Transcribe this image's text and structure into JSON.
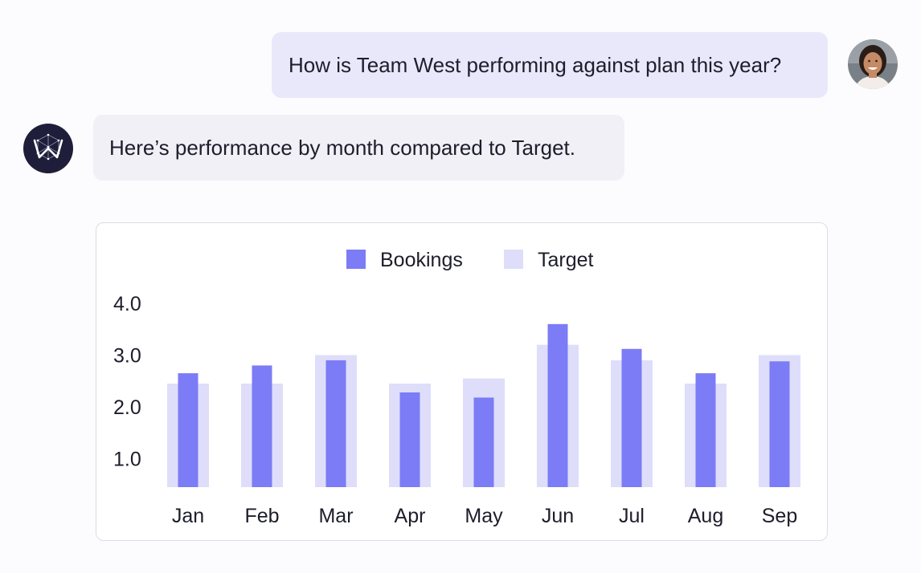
{
  "conversation": {
    "user_message": "How is Team West performing against plan this year?",
    "assistant_message": "Here’s performance by month compared to Target."
  },
  "colors": {
    "bookings": "#7c7cf6",
    "target": "#dedefa",
    "user_bubble": "#e9e8fb",
    "assistant_bubble": "#f1f0f6",
    "assistant_logo_bg": "#1e1e3b"
  },
  "icons": {
    "user_avatar": "user-avatar-photo",
    "assistant_logo": "w-network-logo-icon"
  },
  "chart_data": {
    "type": "bar",
    "categories": [
      "Jan",
      "Feb",
      "Mar",
      "Apr",
      "May",
      "Jun",
      "Jul",
      "Aug",
      "Sep"
    ],
    "series": [
      {
        "name": "Bookings",
        "values": [
          2.65,
          2.8,
          2.9,
          2.28,
          2.18,
          3.6,
          3.12,
          2.65,
          2.88
        ]
      },
      {
        "name": "Target",
        "values": [
          2.45,
          2.45,
          3.0,
          2.45,
          2.55,
          3.2,
          2.9,
          2.45,
          3.0
        ]
      }
    ],
    "y_ticks": [
      "4.0",
      "3.0",
      "2.0",
      "1.0"
    ],
    "y_tick_values": [
      4.0,
      3.0,
      2.0,
      1.0
    ],
    "ylim": [
      0.45,
      4.0
    ],
    "legend_position": "top-center",
    "grid": false,
    "title": "",
    "xlabel": "",
    "ylabel": ""
  }
}
